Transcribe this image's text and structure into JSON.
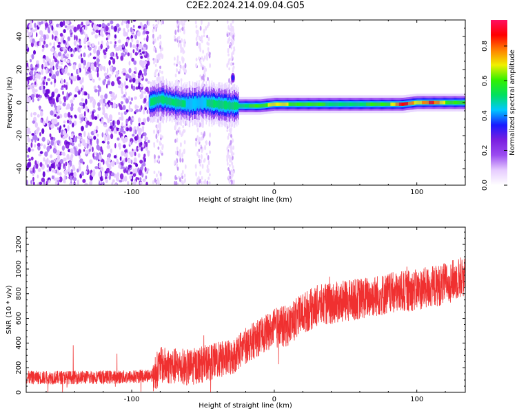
{
  "figure_title": "C2E2.2024.214.09.04.G05",
  "colors": {
    "snr_line": "#f03030",
    "colormap": [
      "#ffffff",
      "#e6ccff",
      "#9b4cf0",
      "#7a1fe0",
      "#1a1aff",
      "#00c8ff",
      "#00e060",
      "#32f000",
      "#f0f000",
      "#ff8000",
      "#ff0000",
      "#ff1060"
    ]
  },
  "chart_data": [
    {
      "type": "heatmap",
      "title": "",
      "xlabel": "Height of straight line (km)",
      "ylabel": "Frequency (Hz)",
      "xlim": [
        -174,
        134
      ],
      "ylim": [
        -50,
        50
      ],
      "xticks": [
        -100,
        0,
        100
      ],
      "yticks": [
        -40,
        -20,
        0,
        20,
        40
      ],
      "colorbar": {
        "label": "Normalized spectral amplitude",
        "range": [
          0.0,
          0.95
        ],
        "ticks": [
          0.0,
          0.2,
          0.4,
          0.6,
          0.8
        ]
      },
      "ridge": {
        "description_values": "dominant frequency band near 0 Hz from -90 km upward",
        "height_km": [
          -88,
          -80,
          -70,
          -60,
          -50,
          -40,
          -30,
          -20,
          -10,
          0,
          20,
          40,
          60,
          80,
          90,
          100,
          110,
          120,
          134
        ],
        "center_hz": [
          0,
          2,
          0,
          -1,
          0,
          -1,
          -2,
          -2,
          -2,
          -1,
          -1,
          -1,
          -1,
          -1,
          -1,
          0,
          0,
          0,
          0
        ],
        "amplitude": [
          0.35,
          0.45,
          0.4,
          0.35,
          0.35,
          0.4,
          0.45,
          0.45,
          0.5,
          0.6,
          0.5,
          0.45,
          0.45,
          0.5,
          0.85,
          0.6,
          0.8,
          0.55,
          0.5
        ]
      },
      "noise_region_km": [
        -174,
        -88
      ]
    },
    {
      "type": "line",
      "title": "",
      "xlabel": "Height of straight line (km)",
      "ylabel": "SNR (10 * v/v)",
      "xlim": [
        -174,
        134
      ],
      "ylim": [
        0,
        1340
      ],
      "xticks": [
        -100,
        0,
        100
      ],
      "yticks": [
        0,
        200,
        400,
        600,
        800,
        1000,
        1200
      ],
      "trend": {
        "x": [
          -174,
          -150,
          -100,
          -85,
          -80,
          -60,
          -40,
          -30,
          -20,
          -10,
          0,
          10,
          20,
          30,
          40,
          60,
          80,
          100,
          120,
          134
        ],
        "y": [
          120,
          120,
          125,
          140,
          220,
          200,
          260,
          280,
          380,
          450,
          520,
          540,
          640,
          700,
          720,
          760,
          800,
          830,
          880,
          950
        ]
      }
    }
  ]
}
